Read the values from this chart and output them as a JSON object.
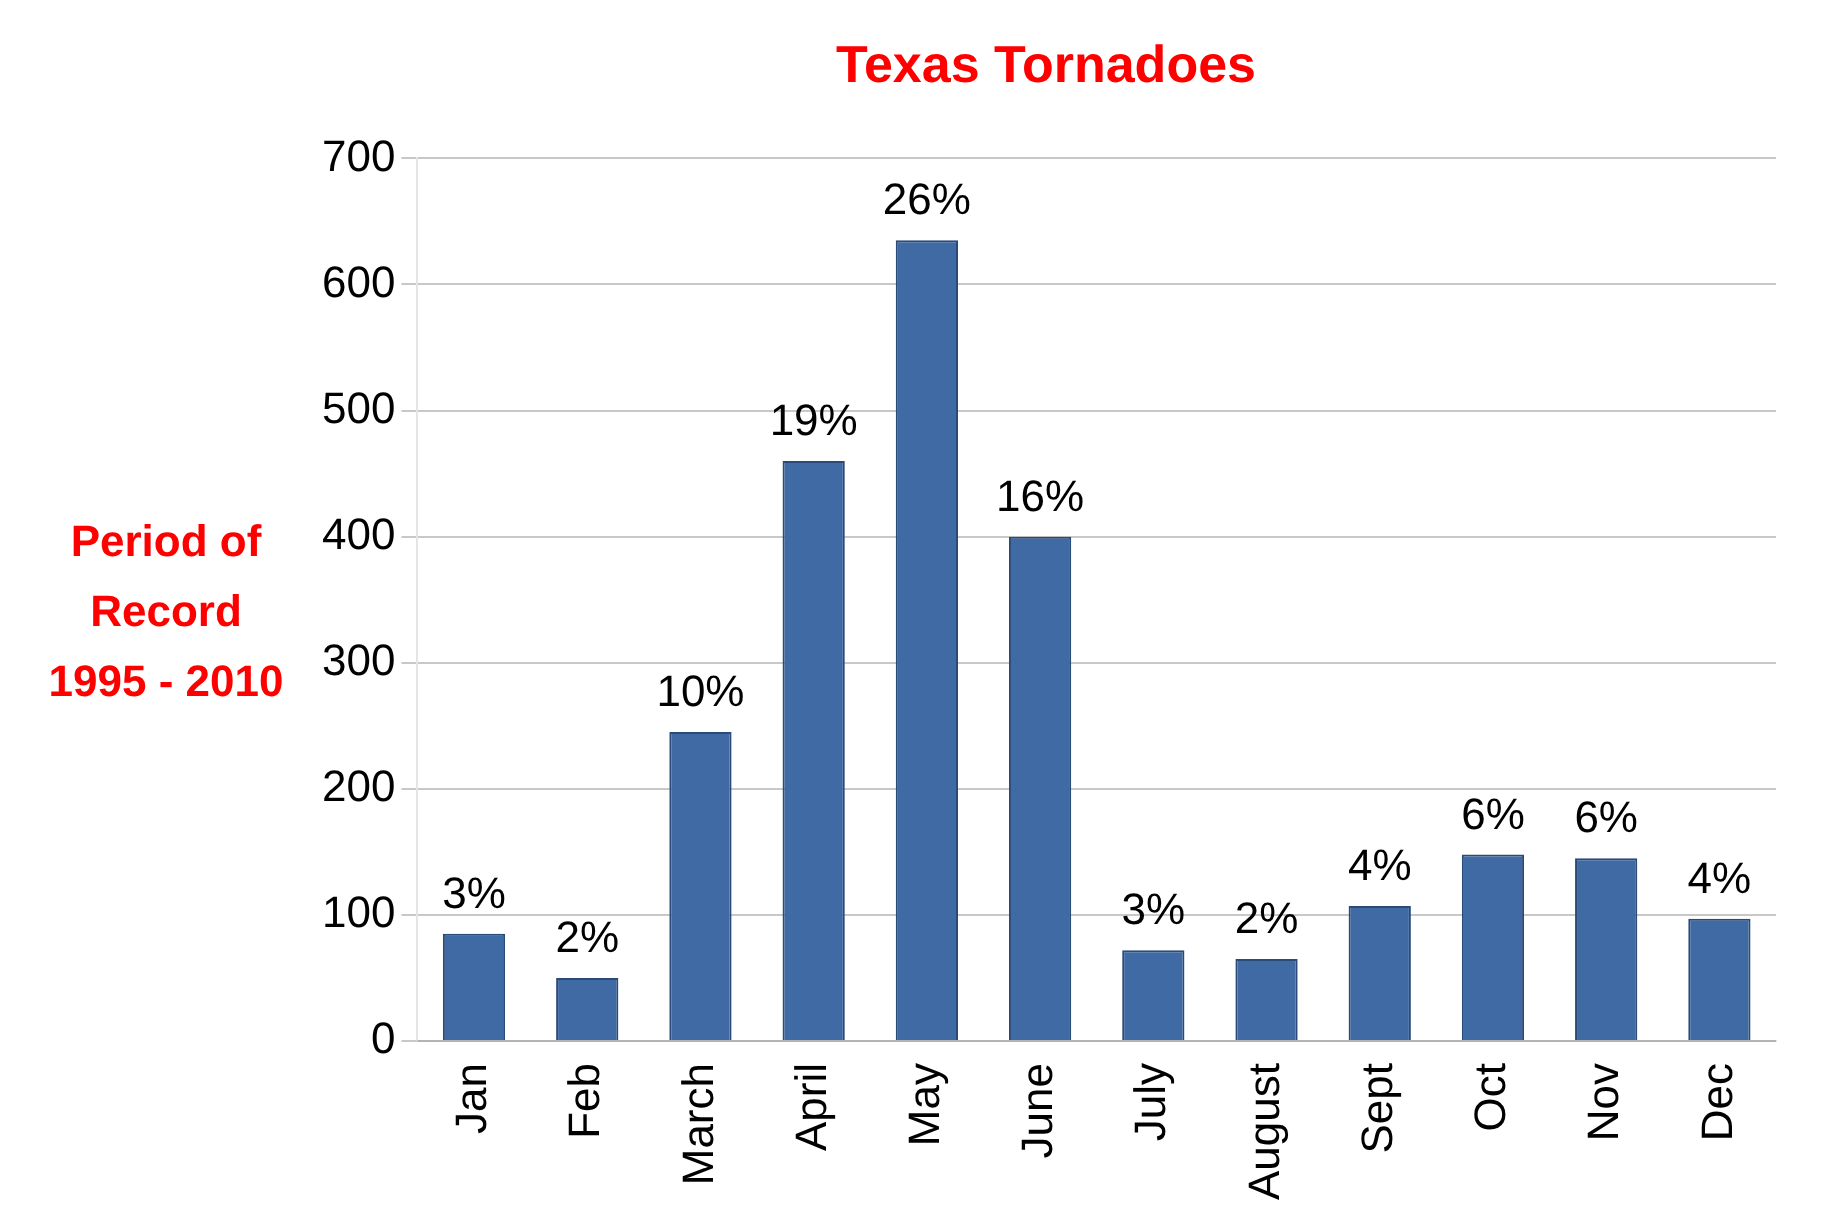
{
  "chart_data": {
    "type": "bar",
    "title": "Texas Tornadoes",
    "ylabel": "Period of\nRecord\n1995 - 2010",
    "categories": [
      "Jan",
      "Feb",
      "March",
      "April",
      "May",
      "June",
      "July",
      "August",
      "Sept",
      "Oct",
      "Nov",
      "Dec"
    ],
    "values": [
      85,
      50,
      245,
      460,
      635,
      400,
      72,
      65,
      107,
      148,
      145,
      97
    ],
    "annotations": [
      {
        "text": "3%",
        "x": "Jan",
        "y": 85
      },
      {
        "text": "2%",
        "x": "Feb",
        "y": 50
      },
      {
        "text": "10%",
        "x": "March",
        "y": 245
      },
      {
        "text": "19%",
        "x": "April",
        "y": 460
      },
      {
        "text": "26%",
        "x": "May",
        "y": 635
      },
      {
        "text": "16%",
        "x": "June",
        "y": 400
      },
      {
        "text": "3%",
        "x": "July",
        "y": 72
      },
      {
        "text": "2%",
        "x": "August",
        "y": 65
      },
      {
        "text": "4%",
        "x": "Sept",
        "y": 107
      },
      {
        "text": "6%",
        "x": "Oct",
        "y": 148
      },
      {
        "text": "6%",
        "x": "Nov",
        "y": 145
      },
      {
        "text": "4%",
        "x": "Dec",
        "y": 97
      }
    ],
    "color": "#3f6aa3",
    "ylim": [
      0,
      700
    ],
    "yticks": [
      0,
      100,
      200,
      300,
      400,
      500,
      600,
      700
    ],
    "grid": "y",
    "legend": false
  }
}
